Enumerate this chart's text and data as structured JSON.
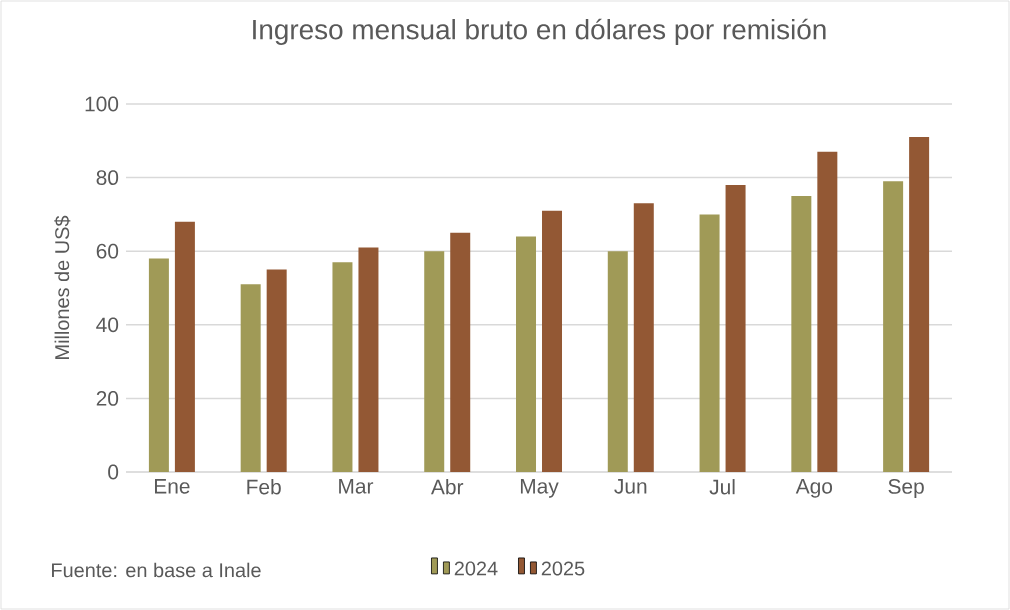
{
  "chart_data": {
    "type": "bar",
    "title": "Ingreso mensual bruto en dólares por remisión",
    "ylabel": "Millones de US$",
    "categories": [
      "Ene",
      "Feb",
      "Mar",
      "Abr",
      "May",
      "Jun",
      "Jul",
      "Ago",
      "Sep"
    ],
    "series": [
      {
        "name": "2024",
        "color": "#a09a57",
        "values": [
          58,
          51,
          57,
          60,
          64,
          60,
          70,
          75,
          79
        ]
      },
      {
        "name": "2025",
        "color": "#935834",
        "values": [
          68,
          55,
          61,
          65,
          71,
          73,
          78,
          87,
          91
        ]
      }
    ],
    "ylim": [
      0,
      100
    ],
    "yticks": [
      0,
      20,
      40,
      60,
      80,
      100
    ],
    "grid": "y",
    "legend": "bottom",
    "annotations": [
      "Fuente: en base a Inale"
    ]
  }
}
